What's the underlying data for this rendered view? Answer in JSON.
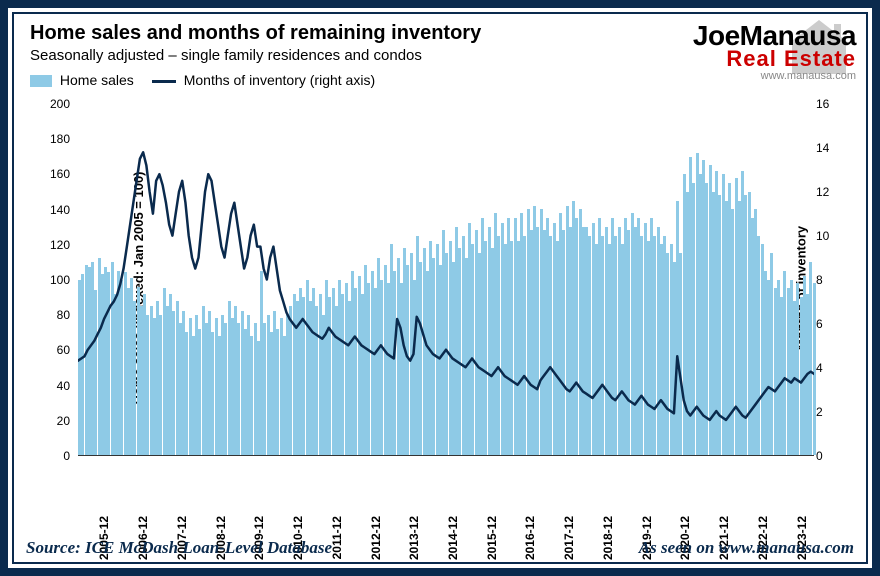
{
  "chart": {
    "type": "bar-line-combo",
    "title": "Home sales and months of remaining inventory",
    "subtitle": "Seasonally adjusted – single family residences and condos",
    "legend": {
      "bar_label": "Home sales",
      "line_label": "Months of inventory (right axis)"
    },
    "y_left": {
      "label": "Home sales (Indexed: Jan 2005 = 100)",
      "min": 0,
      "max": 200,
      "step": 20,
      "ticks": [
        0,
        20,
        40,
        60,
        80,
        100,
        120,
        140,
        160,
        180,
        200
      ],
      "label_fontsize": 13
    },
    "y_right": {
      "label": "Months of inventory",
      "min": 0,
      "max": 16,
      "step": 2,
      "ticks": [
        0,
        2,
        4,
        6,
        8,
        10,
        12,
        14,
        16
      ],
      "label_fontsize": 13
    },
    "x": {
      "labels": [
        "2005-12",
        "2006-12",
        "2007-12",
        "2008-12",
        "2009-12",
        "2010-12",
        "2011-12",
        "2012-12",
        "2013-12",
        "2014-12",
        "2015-12",
        "2016-12",
        "2017-12",
        "2018-12",
        "2019-12",
        "2020-12",
        "2021-12",
        "2022-12",
        "2023-12"
      ],
      "rotation": -90,
      "label_fontsize": 12
    },
    "bar_color": "#8ecae6",
    "line_color": "#0a2a4d",
    "line_width": 2.5,
    "background_color": "#ffffff",
    "home_sales": [
      100,
      103,
      108,
      107,
      110,
      94,
      112,
      103,
      107,
      104,
      110,
      92,
      105,
      100,
      104,
      95,
      101,
      88,
      96,
      85,
      92,
      80,
      85,
      78,
      88,
      80,
      95,
      85,
      92,
      82,
      88,
      75,
      82,
      70,
      78,
      68,
      80,
      72,
      85,
      75,
      82,
      70,
      78,
      68,
      80,
      75,
      88,
      78,
      85,
      75,
      82,
      72,
      80,
      68,
      75,
      65,
      105,
      75,
      80,
      70,
      82,
      72,
      78,
      68,
      80,
      85,
      92,
      88,
      95,
      90,
      100,
      88,
      95,
      85,
      92,
      80,
      100,
      90,
      95,
      85,
      100,
      92,
      98,
      88,
      105,
      95,
      102,
      92,
      108,
      98,
      105,
      95,
      112,
      100,
      108,
      98,
      120,
      105,
      112,
      98,
      118,
      108,
      115,
      100,
      125,
      110,
      118,
      105,
      122,
      112,
      120,
      108,
      128,
      115,
      122,
      110,
      130,
      118,
      125,
      112,
      132,
      120,
      128,
      115,
      135,
      122,
      130,
      118,
      138,
      125,
      132,
      120,
      135,
      122,
      135,
      122,
      138,
      125,
      140,
      128,
      142,
      130,
      140,
      128,
      135,
      125,
      132,
      122,
      138,
      128,
      142,
      130,
      145,
      135,
      140,
      130,
      130,
      125,
      132,
      120,
      135,
      125,
      130,
      120,
      135,
      125,
      130,
      120,
      135,
      128,
      138,
      130,
      135,
      125,
      132,
      122,
      135,
      125,
      130,
      120,
      125,
      115,
      120,
      110,
      145,
      115,
      160,
      150,
      170,
      155,
      172,
      160,
      168,
      155,
      165,
      150,
      162,
      148,
      160,
      145,
      155,
      140,
      158,
      145,
      162,
      148,
      150,
      135,
      140,
      125,
      120,
      105,
      100,
      115,
      95,
      100,
      90,
      105,
      95,
      100,
      88,
      98,
      90,
      102,
      92,
      110,
      98
    ],
    "months_inventory": [
      4.3,
      4.4,
      4.5,
      4.8,
      5.0,
      5.2,
      5.5,
      5.8,
      6.2,
      6.5,
      6.8,
      7.0,
      7.3,
      7.8,
      8.5,
      9.5,
      10.5,
      11.5,
      12.5,
      13.5,
      13.8,
      13.2,
      12.0,
      11.0,
      12.5,
      12.8,
      12.3,
      11.5,
      10.5,
      10.0,
      11.0,
      12.0,
      12.5,
      11.5,
      10.0,
      9.0,
      8.5,
      9.0,
      10.5,
      12.0,
      12.8,
      12.5,
      11.5,
      10.5,
      9.5,
      9.0,
      10.0,
      11.0,
      11.5,
      10.5,
      9.5,
      8.5,
      9.0,
      10.0,
      10.5,
      9.5,
      9.5,
      8.5,
      8.0,
      9.0,
      9.5,
      8.5,
      7.5,
      7.0,
      6.5,
      6.2,
      6.0,
      5.8,
      6.0,
      6.2,
      6.0,
      5.8,
      5.6,
      5.5,
      5.4,
      5.3,
      5.5,
      5.8,
      5.6,
      5.4,
      5.3,
      5.2,
      5.1,
      5.0,
      5.2,
      5.4,
      5.2,
      5.0,
      4.9,
      4.8,
      4.7,
      4.6,
      4.8,
      5.0,
      4.8,
      4.6,
      4.5,
      4.4,
      6.2,
      5.8,
      5.0,
      4.5,
      4.3,
      4.6,
      6.3,
      6.0,
      5.5,
      5.0,
      4.8,
      4.6,
      4.5,
      4.4,
      4.6,
      4.8,
      4.6,
      4.4,
      4.3,
      4.2,
      4.1,
      4.0,
      4.2,
      4.4,
      4.2,
      4.0,
      3.9,
      3.8,
      3.7,
      3.6,
      3.8,
      4.0,
      3.8,
      3.6,
      3.5,
      3.4,
      3.3,
      3.2,
      3.4,
      3.6,
      3.4,
      3.2,
      3.1,
      3.0,
      3.4,
      3.6,
      3.8,
      4.0,
      3.8,
      3.6,
      3.4,
      3.2,
      3.0,
      2.9,
      3.1,
      3.3,
      3.1,
      2.9,
      2.8,
      2.7,
      2.6,
      2.8,
      3.0,
      3.2,
      3.0,
      2.8,
      2.6,
      2.5,
      2.7,
      2.9,
      2.7,
      2.5,
      2.4,
      2.3,
      2.5,
      2.7,
      2.5,
      2.3,
      2.2,
      2.1,
      2.3,
      2.5,
      2.3,
      2.1,
      2.0,
      1.9,
      4.5,
      3.5,
      2.5,
      2.0,
      1.8,
      2.0,
      2.2,
      2.0,
      1.8,
      1.7,
      1.6,
      1.8,
      2.0,
      1.8,
      1.7,
      1.6,
      1.8,
      2.0,
      2.2,
      2.0,
      1.8,
      1.7,
      1.9,
      2.1,
      2.3,
      2.5,
      2.7,
      2.9,
      3.1,
      3.0,
      2.9,
      3.1,
      3.3,
      3.5,
      3.4,
      3.3,
      3.5,
      3.4,
      3.3,
      3.5,
      3.7,
      3.8,
      3.7
    ]
  },
  "logo": {
    "name_line": "JoeManausa",
    "tagline": "Real Estate",
    "url": "www.manausa.com",
    "house_color": "#cccccc",
    "tagline_color": "#c00000"
  },
  "footer": {
    "source": "Source: ICE McDash Loan-Level Database",
    "seen": "As seen on www.manausa.com",
    "text_color": "#0a2a4d"
  },
  "frame": {
    "border_color": "#0a2a4d",
    "border_width_outer": 8,
    "border_width_inner": 2
  }
}
